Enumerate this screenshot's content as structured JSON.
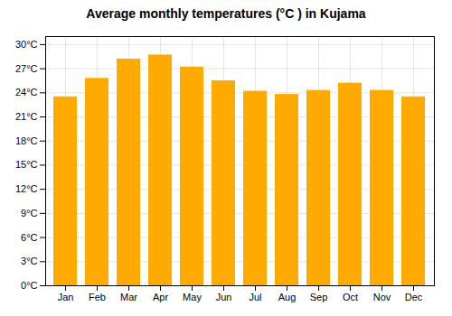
{
  "chart_data": {
    "type": "bar",
    "title": "Average monthly temperatures (°C ) in Kujama",
    "categories": [
      "Jan",
      "Feb",
      "Mar",
      "Apr",
      "May",
      "Jun",
      "Jul",
      "Aug",
      "Sep",
      "Oct",
      "Nov",
      "Dec"
    ],
    "values": [
      23.5,
      25.8,
      28.2,
      28.7,
      27.2,
      25.5,
      24.2,
      23.8,
      24.3,
      25.2,
      24.3,
      23.5
    ],
    "color": "#FFAA00",
    "ylim": [
      0,
      31
    ],
    "yticks": [
      {
        "value": 0,
        "label": "0°C"
      },
      {
        "value": 3,
        "label": "3°C"
      },
      {
        "value": 6,
        "label": "6°C"
      },
      {
        "value": 9,
        "label": "9°C"
      },
      {
        "value": 12,
        "label": "12°C"
      },
      {
        "value": 15,
        "label": "15°C"
      },
      {
        "value": 18,
        "label": "18°C"
      },
      {
        "value": 21,
        "label": "21°C"
      },
      {
        "value": 24,
        "label": "24°C"
      },
      {
        "value": 27,
        "label": "27°C"
      },
      {
        "value": 30,
        "label": "30°C"
      }
    ],
    "grid": true
  }
}
